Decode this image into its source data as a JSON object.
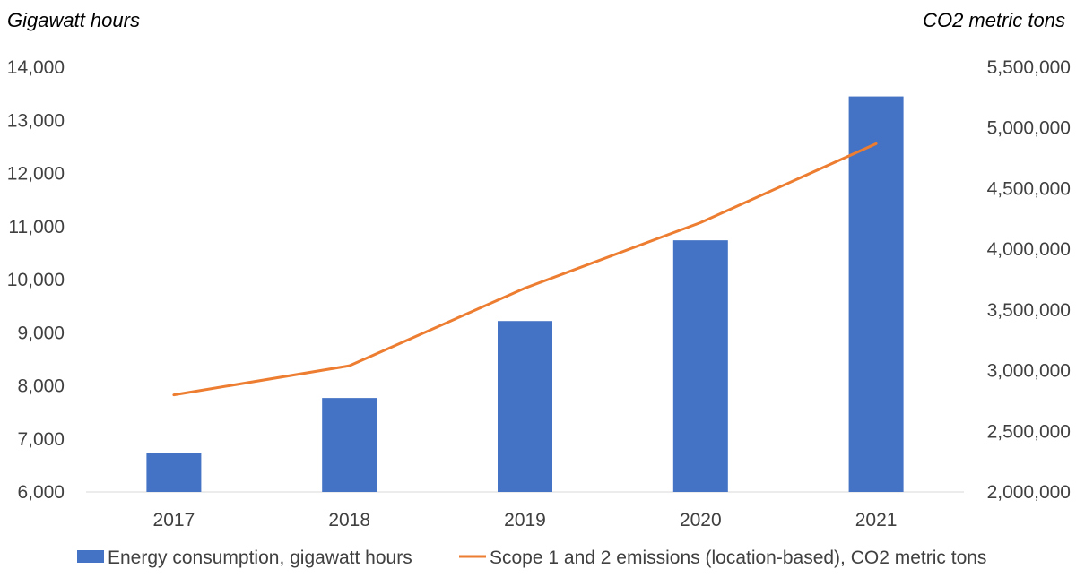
{
  "chart_data": {
    "type": "bar",
    "categories": [
      "2017",
      "2018",
      "2019",
      "2020",
      "2021"
    ],
    "y_left": {
      "label": "Gigawatt hours",
      "range": [
        6000,
        14000
      ],
      "ticks": [
        6000,
        7000,
        8000,
        9000,
        10000,
        11000,
        12000,
        13000,
        14000
      ],
      "tick_labels": [
        "6,000",
        "7,000",
        "8,000",
        "9,000",
        "10,000",
        "11,000",
        "12,000",
        "13,000",
        "14,000"
      ]
    },
    "y_right": {
      "label": "CO2 metric tons",
      "range": [
        2000000,
        5500000
      ],
      "ticks": [
        2000000,
        2500000,
        3000000,
        3500000,
        4000000,
        4500000,
        5000000,
        5500000
      ],
      "tick_labels": [
        "2,000,000",
        "2,500,000",
        "3,000,000",
        "3,500,000",
        "4,000,000",
        "4,500,000",
        "5,000,000",
        "5,500,000"
      ]
    },
    "series": [
      {
        "name": "Energy consumption, gigawatt hours",
        "type": "bar",
        "axis": "left",
        "color": "#4472C4",
        "values": [
          6740,
          7770,
          9220,
          10740,
          13450
        ]
      },
      {
        "name": "Scope 1 and 2 emissions (location-based), CO2 metric tons",
        "type": "line",
        "axis": "right",
        "color": "#ED7D31",
        "values": [
          2800000,
          3040000,
          3680000,
          4220000,
          4870000
        ]
      }
    ],
    "grid": false,
    "legend": "bottom"
  }
}
